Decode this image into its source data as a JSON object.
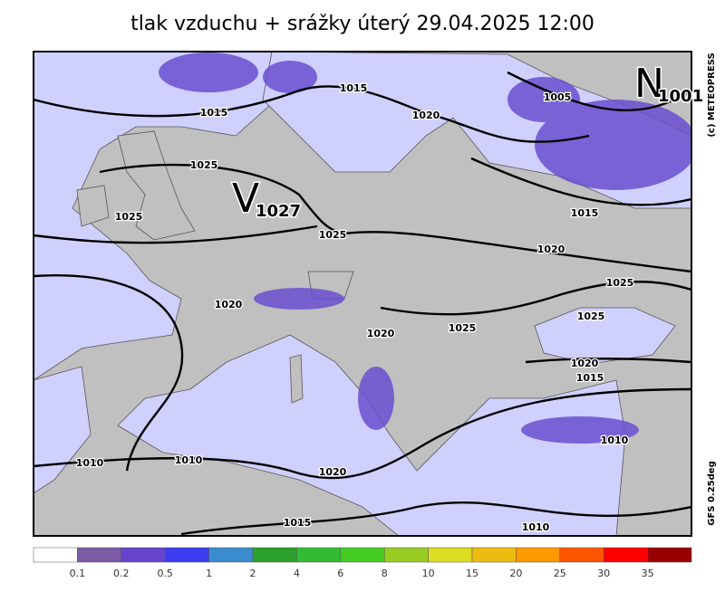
{
  "title": "tlak vzduchu + srážky   úterý 29.04.2025 12:00",
  "credit": "(c) METEOPRESS",
  "model": "GFS 0.25deg",
  "centers": [
    {
      "letter": "V",
      "value": "1027"
    },
    {
      "letter": "N",
      "value": "1001"
    }
  ],
  "isobar_labels": [
    "1015",
    "1020",
    "1005",
    "1015",
    "1025",
    "1025",
    "1025",
    "1015",
    "1020",
    "1025",
    "1025",
    "1020",
    "1020",
    "1025",
    "1020",
    "1015",
    "1010",
    "1010",
    "1010",
    "1020",
    "1015",
    "1010"
  ],
  "colorbar": {
    "colors": [
      "#ffffff",
      "#7b5aa6",
      "#6644cc",
      "#3c3cf0",
      "#3b8ccf",
      "#2ca02c",
      "#33bb33",
      "#44cc22",
      "#99cc22",
      "#dddd22",
      "#eebb11",
      "#ff9900",
      "#ff5500",
      "#ff0000",
      "#990000"
    ],
    "labels": [
      "0.1",
      "0.2",
      "0.5",
      "1",
      "2",
      "4",
      "6",
      "8",
      "10",
      "15",
      "20",
      "25",
      "30",
      "35"
    ]
  }
}
